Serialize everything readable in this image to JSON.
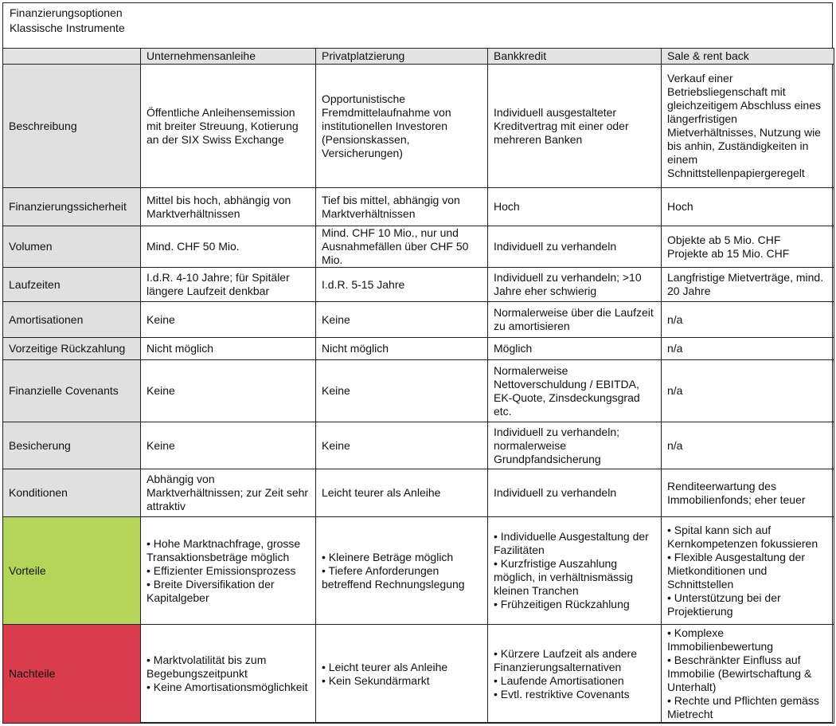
{
  "title": "Finanzierungsoptionen",
  "subtitle": "Klassische Instrumente",
  "colors": {
    "label_bg": "#e0e0e0",
    "vorteile_bg": "#b5d55a",
    "nachteile_bg": "#d93c4c"
  },
  "columns": [
    "",
    "Unternehmensanleihe",
    "Privatplatzierung",
    "Bankkredit",
    "Sale & rent back"
  ],
  "rows": [
    {
      "label": "Beschreibung",
      "cells": [
        [
          "Öffentliche Anleihensemission mit breiter Streuung, Kotierung an der SIX Swiss Exchange"
        ],
        [
          "Opportunistische Fremdmittelaufnahme von institutionellen Investoren (Pensionskassen, Versicherungen)"
        ],
        [
          "Individuell ausgestalteter Kreditvertrag mit einer oder mehreren Banken"
        ],
        [
          "Verkauf einer Betriebsliegenschaft mit gleichzeitigem Abschluss eines längerfristigen Mietverhältnisses, Nutzung wie bis anhin, Zuständigkeiten in einem Schnittstellenpapiergeregelt"
        ]
      ]
    },
    {
      "label": "Finanzierungssicherheit",
      "cells": [
        [
          "Mittel bis hoch, abhängig von Marktverhältnissen"
        ],
        [
          "Tief bis mittel, abhängig von Marktverhältnissen"
        ],
        [
          "Hoch"
        ],
        [
          "Hoch"
        ]
      ]
    },
    {
      "label": "Volumen",
      "cells": [
        [
          "Mind. CHF 50 Mio."
        ],
        [
          "Mind. CHF 10 Mio., nur und Ausnahmefällen über CHF 50 Mio."
        ],
        [
          "Individuell zu verhandeln"
        ],
        [
          "Objekte ab 5 Mio. CHF",
          "Projekte ab 15 Mio. CHF"
        ]
      ]
    },
    {
      "label": "Laufzeiten",
      "cells": [
        [
          "I.d.R. 4-10 Jahre; für Spitäler längere Laufzeit denkbar"
        ],
        [
          "I.d.R. 5-15 Jahre"
        ],
        [
          "Individuell zu verhandeln; >10 Jahre eher schwierig"
        ],
        [
          "Langfristige Mietverträge, mind. 20 Jahre"
        ]
      ]
    },
    {
      "label": "Amortisationen",
      "cells": [
        [
          "Keine"
        ],
        [
          "Keine"
        ],
        [
          "Normalerweise über die Laufzeit zu amortisieren"
        ],
        [
          "n/a"
        ]
      ]
    },
    {
      "label": "Vorzeitige Rückzahlung",
      "cells": [
        [
          "Nicht möglich"
        ],
        [
          "Nicht möglich"
        ],
        [
          "Möglich"
        ],
        [
          "n/a"
        ]
      ]
    },
    {
      "label": "Finanzielle Covenants",
      "cells": [
        [
          "Keine"
        ],
        [
          "Keine"
        ],
        [
          "Normalerweise Nettoverschuldung / EBITDA, EK-Quote, Zinsdeckungsgrad etc."
        ],
        [
          "n/a"
        ]
      ]
    },
    {
      "label": "Besicherung",
      "cells": [
        [
          "Keine"
        ],
        [
          "Keine"
        ],
        [
          "Individuell zu verhandeln; normalerweise Grundpfandsicherung"
        ],
        [
          "n/a"
        ]
      ]
    },
    {
      "label": "Konditionen",
      "cells": [
        [
          "Abhängig von Marktverhältnissen; zur Zeit sehr attraktiv"
        ],
        [
          "Leicht teurer als Anleihe"
        ],
        [
          "Individuell zu verhandeln"
        ],
        [
          "Renditeerwartung des Immobilienfonds; eher teuer"
        ]
      ]
    },
    {
      "label": "Vorteile",
      "kind": "pro",
      "cells": [
        [
          "• Hohe Marktnachfrage, grosse Transaktionsbeträge möglich",
          "• Effizienter Emissionsprozess",
          "• Breite Diversifikation der Kapitalgeber"
        ],
        [
          "• Kleinere Beträge möglich",
          "• Tiefere Anforderungen betreffend Rechnungslegung"
        ],
        [
          "• Individuelle Ausgestaltung der Fazilitäten",
          "• Kurzfristige Auszahlung möglich, in verhältnismässig kleinen Tranchen",
          "• Frühzeitigen Rückzahlung"
        ],
        [
          "• Spital kann sich auf Kernkompetenzen fokussieren",
          "• Flexible Ausgestaltung der Mietkonditionen und Schnittstellen",
          "• Unterstützung bei der Projektierung"
        ]
      ]
    },
    {
      "label": "Nachteile",
      "kind": "con",
      "cells": [
        [
          "• Marktvolatilität bis zum Begebungszeitpunkt",
          "• Keine Amortisationsmöglichkeit"
        ],
        [
          "• Leicht teurer als Anleihe",
          "• Kein Sekundärmarkt"
        ],
        [
          "• Kürzere Laufzeit als andere Finanzierungsalternativen",
          "• Laufende Amortisationen",
          "• Evtl. restriktive Covenants"
        ],
        [
          "• Komplexe Immobilienbewertung",
          "• Beschränkter Einfluss auf Immobilie (Bewirtschaftung & Unterhalt)",
          "• Rechte und Pflichten gemäss Mietrecht"
        ]
      ]
    }
  ]
}
